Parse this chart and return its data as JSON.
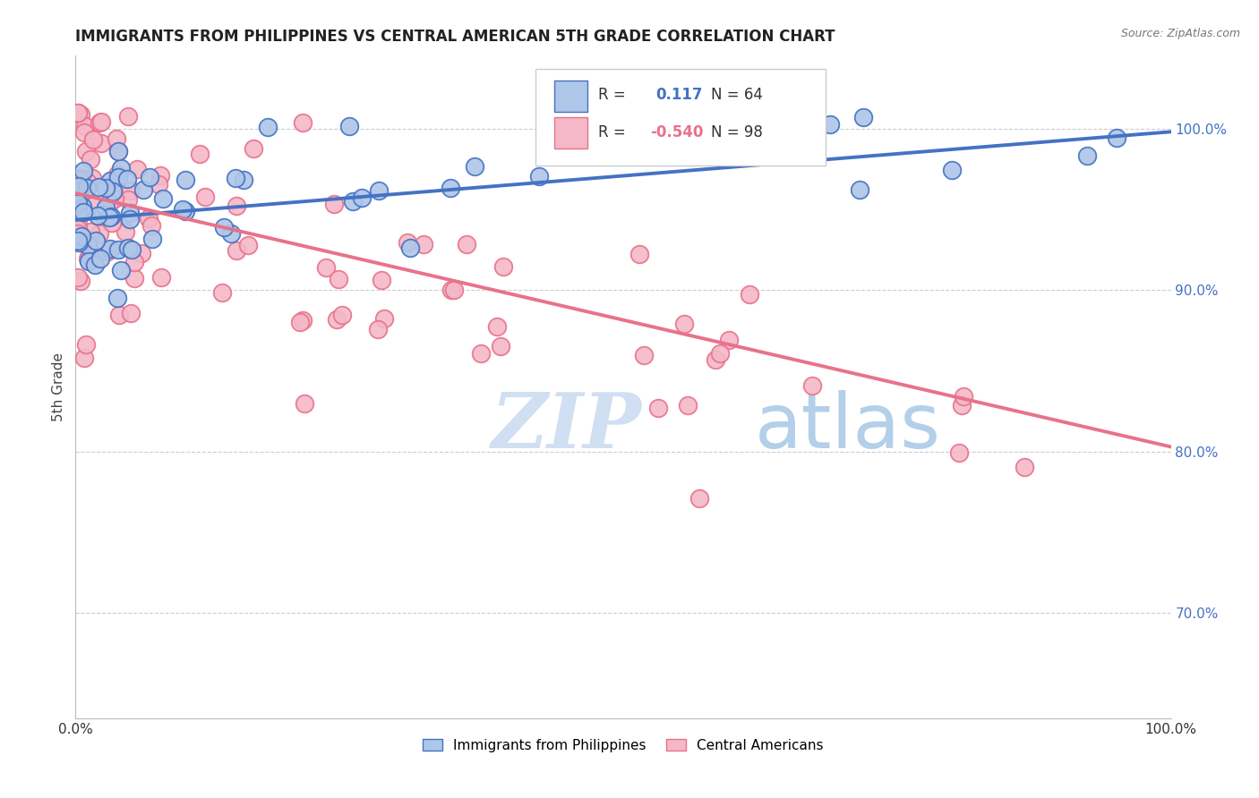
{
  "title": "IMMIGRANTS FROM PHILIPPINES VS CENTRAL AMERICAN 5TH GRADE CORRELATION CHART",
  "source": "Source: ZipAtlas.com",
  "ylabel": "5th Grade",
  "xlim": [
    0.0,
    1.0
  ],
  "ylim": [
    0.635,
    1.045
  ],
  "ytick_values": [
    0.7,
    0.8,
    0.9,
    1.0
  ],
  "ytick_labels": [
    "70.0%",
    "80.0%",
    "90.0%",
    "100.0%"
  ],
  "xtick_values": [
    0.0,
    1.0
  ],
  "xtick_labels": [
    "0.0%",
    "100.0%"
  ],
  "blue_color": "#4472C4",
  "pink_color": "#E8728A",
  "blue_fill": "#AEC6E8",
  "pink_fill": "#F4B8C8",
  "watermark_zip": "ZIP",
  "watermark_atlas": "atlas",
  "source_text": "Source: ZipAtlas.com",
  "legend_R_blue": "0.117",
  "legend_N_blue": "64",
  "legend_R_pink": "-0.540",
  "legend_N_pink": "98",
  "legend_label_blue": "Immigrants from Philippines",
  "legend_label_pink": "Central Americans",
  "blue_line_x0": 0.0,
  "blue_line_x1": 1.0,
  "blue_line_y0": 0.9435,
  "blue_line_y1": 0.998,
  "pink_line_x0": 0.0,
  "pink_line_x1": 1.0,
  "pink_line_y0": 0.96,
  "pink_line_y1": 0.803,
  "grid_color": "#CCCCCC",
  "bg_color": "#FFFFFF"
}
